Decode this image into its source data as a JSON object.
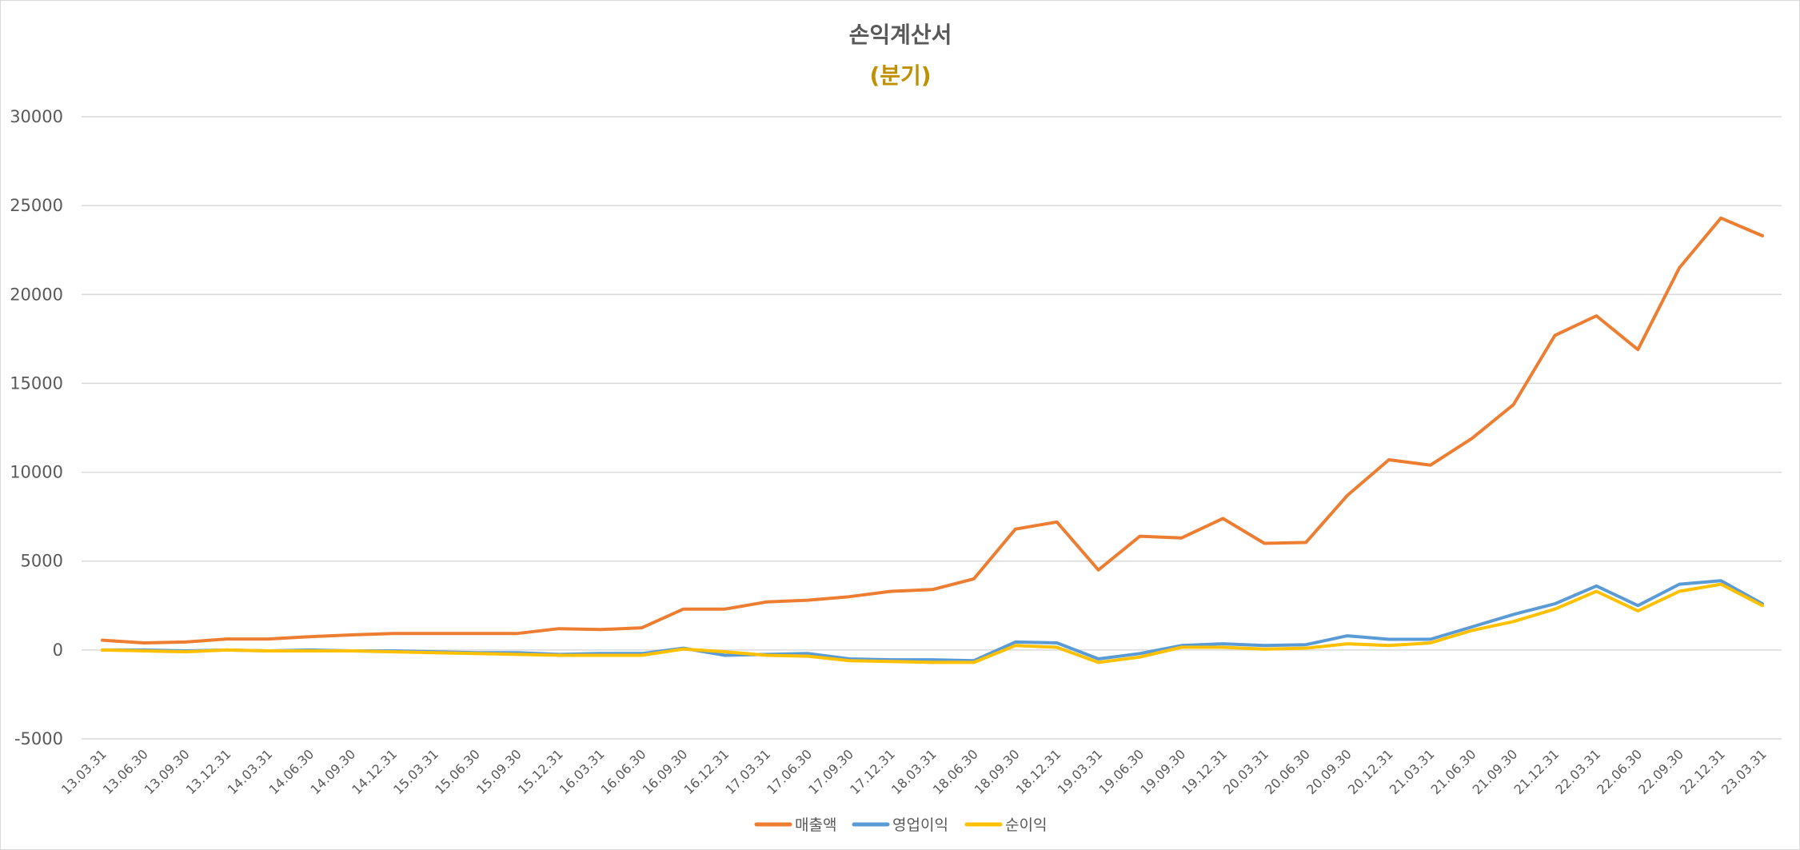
{
  "chart_data": {
    "type": "line",
    "title": "손익계산서",
    "subtitle": "(분기)",
    "xlabel": "",
    "ylabel": "",
    "ylim": [
      -5000,
      30000
    ],
    "yticks": [
      -5000,
      0,
      5000,
      10000,
      15000,
      20000,
      25000,
      30000
    ],
    "grid": true,
    "legend_position": "bottom",
    "colors": {
      "subtitle": "#BF9000",
      "title": "#595959",
      "text": "#595959",
      "grid": "#D9D9D9"
    },
    "categories": [
      "13.03.31",
      "13.06.30",
      "13.09.30",
      "13.12.31",
      "14.03.31",
      "14.06.30",
      "14.09.30",
      "14.12.31",
      "15.03.31",
      "15.06.30",
      "15.09.30",
      "15.12.31",
      "16.03.31",
      "16.06.30",
      "16.09.30",
      "16.12.31",
      "17.03.31",
      "17.06.30",
      "17.09.30",
      "17.12.31",
      "18.03.31",
      "18.06.30",
      "18.09.30",
      "18.12.31",
      "19.03.31",
      "19.06.30",
      "19.09.30",
      "19.12.31",
      "20.03.31",
      "20.06.30",
      "20.09.30",
      "20.12.31",
      "21.03.31",
      "21.06.30",
      "21.09.30",
      "21.12.31",
      "22.03.31",
      "22.06.30",
      "22.09.30",
      "22.12.31",
      "23.03.31"
    ],
    "series": [
      {
        "name": "매출액",
        "color": "#ED7D31",
        "values": [
          550,
          400,
          450,
          620,
          620,
          750,
          850,
          930,
          930,
          930,
          930,
          1200,
          1150,
          1250,
          2300,
          2300,
          2700,
          2800,
          3000,
          3300,
          3400,
          4000,
          6800,
          7200,
          4500,
          6400,
          6300,
          7400,
          6000,
          6050,
          8700,
          10700,
          10400,
          11900,
          13800,
          17700,
          18800,
          16900,
          21500,
          24300,
          23300
        ]
      },
      {
        "name": "영업이익",
        "color": "#5B9BD5",
        "values": [
          0,
          0,
          -50,
          0,
          -50,
          0,
          -50,
          -50,
          -100,
          -150,
          -150,
          -250,
          -200,
          -200,
          100,
          -300,
          -250,
          -200,
          -500,
          -550,
          -550,
          -600,
          450,
          400,
          -500,
          -200,
          250,
          350,
          250,
          300,
          800,
          600,
          600,
          1300,
          2000,
          2600,
          3600,
          2500,
          3700,
          3900,
          2600
        ]
      },
      {
        "name": "순이익",
        "color": "#FFC000",
        "values": [
          0,
          -50,
          -100,
          0,
          -50,
          -50,
          -50,
          -100,
          -150,
          -200,
          -250,
          -300,
          -300,
          -300,
          50,
          -100,
          -300,
          -350,
          -600,
          -650,
          -700,
          -700,
          250,
          150,
          -700,
          -400,
          150,
          150,
          50,
          100,
          350,
          250,
          400,
          1100,
          1600,
          2300,
          3300,
          2200,
          3300,
          3700,
          2500
        ]
      }
    ]
  }
}
